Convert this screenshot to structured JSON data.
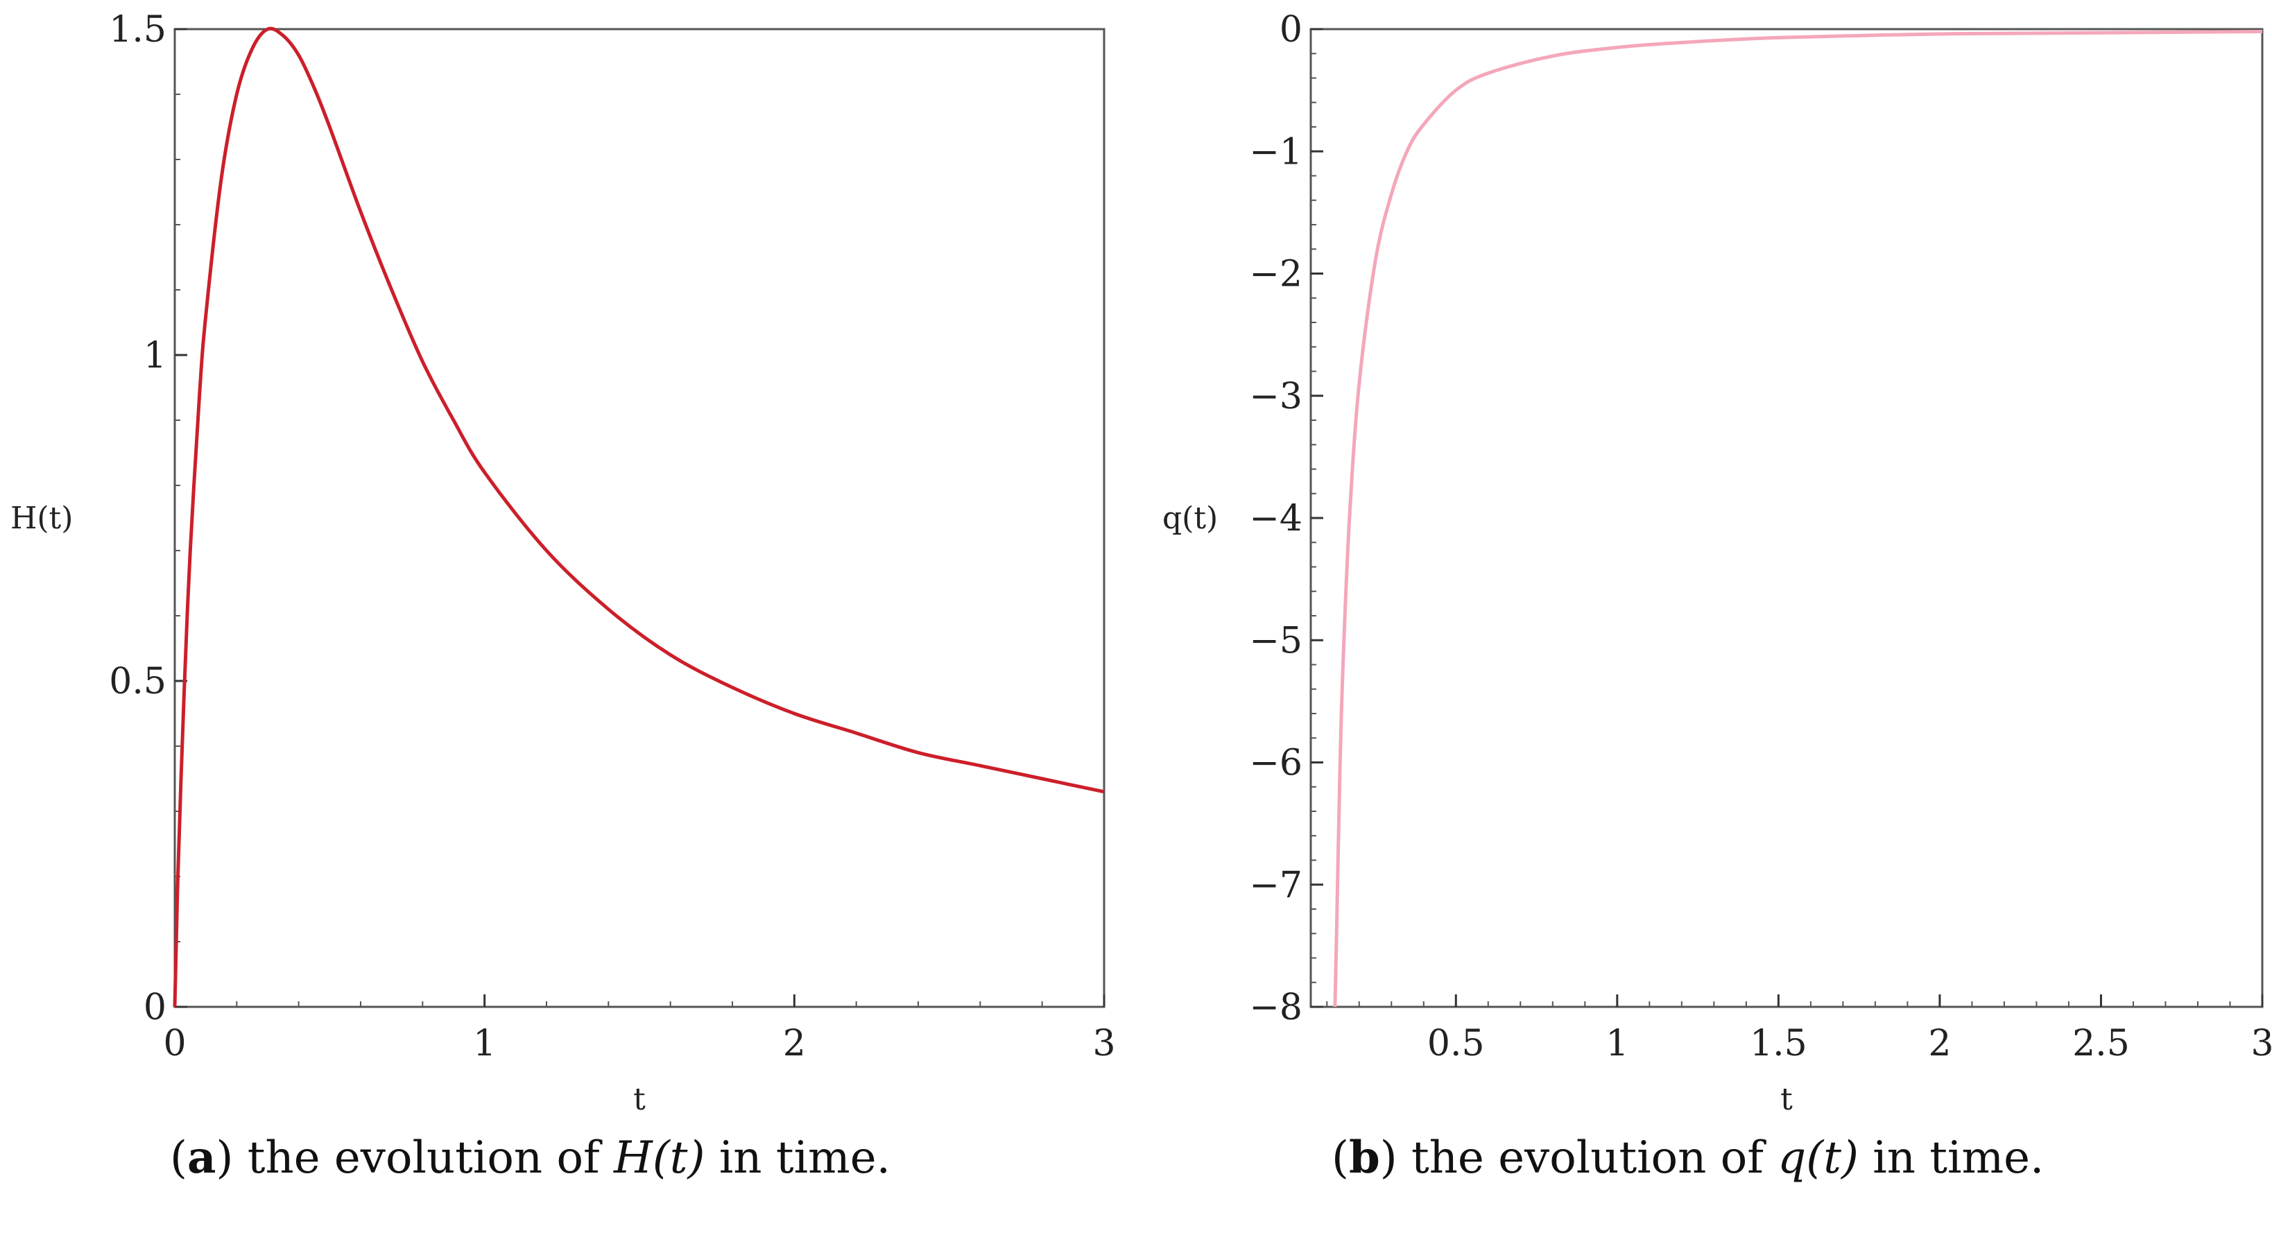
{
  "chart_data": [
    {
      "type": "line",
      "panel": "a",
      "xlabel": "t",
      "ylabel": "H(t)",
      "xlim": [
        0,
        3
      ],
      "ylim": [
        0,
        1.5
      ],
      "xticks": [
        {
          "v": 0,
          "label": "0"
        },
        {
          "v": 1,
          "label": "1"
        },
        {
          "v": 2,
          "label": "2"
        },
        {
          "v": 3,
          "label": "3"
        }
      ],
      "yticks": [
        {
          "v": 0,
          "label": "0"
        },
        {
          "v": 0.5,
          "label": "0.5"
        },
        {
          "v": 1,
          "label": "1"
        },
        {
          "v": 1.5,
          "label": "1.5"
        }
      ],
      "color": "#cc1f2a",
      "series": [
        {
          "x": [
            0,
            0.01,
            0.03,
            0.05,
            0.08,
            0.1,
            0.15,
            0.2,
            0.25,
            0.3,
            0.35,
            0.4,
            0.45,
            0.5,
            0.6,
            0.7,
            0.8,
            0.9,
            1.0,
            1.2,
            1.4,
            1.6,
            1.8,
            2.0,
            2.2,
            2.4,
            2.6,
            2.8,
            3.0
          ],
          "y": [
            0,
            0.2,
            0.48,
            0.7,
            0.94,
            1.06,
            1.27,
            1.4,
            1.47,
            1.5,
            1.49,
            1.46,
            1.41,
            1.35,
            1.22,
            1.1,
            0.99,
            0.9,
            0.82,
            0.7,
            0.61,
            0.54,
            0.49,
            0.45,
            0.42,
            0.39,
            0.37,
            0.35,
            0.33
          ]
        }
      ]
    },
    {
      "type": "line",
      "panel": "b",
      "xlabel": "t",
      "ylabel": "q(t)",
      "xlim": [
        0.05,
        3
      ],
      "ylim": [
        -8,
        0
      ],
      "xticks": [
        {
          "v": 0.5,
          "label": "0.5"
        },
        {
          "v": 1,
          "label": "1"
        },
        {
          "v": 1.5,
          "label": "1.5"
        },
        {
          "v": 2,
          "label": "2"
        },
        {
          "v": 2.5,
          "label": "2.5"
        },
        {
          "v": 3,
          "label": "3"
        }
      ],
      "yticks": [
        {
          "v": 0,
          "label": "0"
        },
        {
          "v": -1,
          "label": "−1"
        },
        {
          "v": -2,
          "label": "−2"
        },
        {
          "v": -3,
          "label": "−3"
        },
        {
          "v": -4,
          "label": "−4"
        },
        {
          "v": -5,
          "label": "−5"
        },
        {
          "v": -6,
          "label": "−6"
        },
        {
          "v": -7,
          "label": "−7"
        },
        {
          "v": -8,
          "label": "−8"
        }
      ],
      "color": "#f4a7b9",
      "series": [
        {
          "x": [
            0.125,
            0.13,
            0.14,
            0.15,
            0.17,
            0.2,
            0.25,
            0.3,
            0.35,
            0.4,
            0.5,
            0.6,
            0.8,
            1.0,
            1.2,
            1.5,
            2.0,
            2.5,
            3.0
          ],
          "y": [
            -8,
            -7.4,
            -6.1,
            -5.2,
            -4.0,
            -2.9,
            -1.9,
            -1.35,
            -0.99,
            -0.78,
            -0.5,
            -0.36,
            -0.22,
            -0.15,
            -0.11,
            -0.07,
            -0.04,
            -0.03,
            -0.02
          ]
        }
      ]
    }
  ],
  "captions": [
    {
      "label": "(a)",
      "text_before": " the evolution of ",
      "math": "H(t)",
      "text_after": " in time."
    },
    {
      "label": "(b)",
      "text_before": " the evolution of ",
      "math": "q(t)",
      "text_after": " in time."
    }
  ]
}
